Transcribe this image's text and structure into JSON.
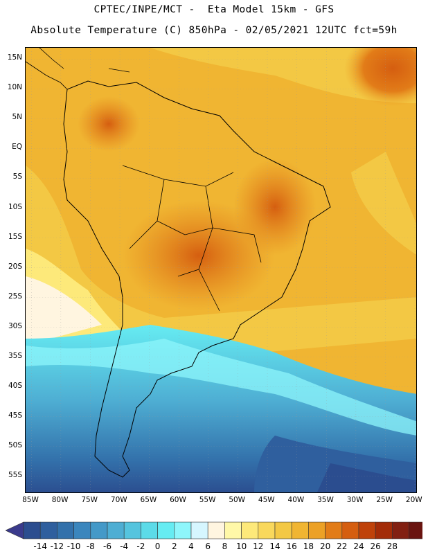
{
  "header": {
    "line1": "CPTEC/INPE/MCT -  Eta Model 15km - GFS",
    "line2": "Absolute Temperature (C) 850hPa - 02/05/2021 12UTC fct=59h"
  },
  "axes": {
    "lat_labels": [
      "15N",
      "10N",
      "5N",
      "EQ",
      "5S",
      "10S",
      "15S",
      "20S",
      "25S",
      "30S",
      "35S",
      "40S",
      "45S",
      "50S",
      "55S"
    ],
    "lon_labels": [
      "85W",
      "80W",
      "75W",
      "70W",
      "65W",
      "60W",
      "55W",
      "50W",
      "45W",
      "40W",
      "35W",
      "30W",
      "25W",
      "20W"
    ]
  },
  "colorbar": {
    "labels": [
      "-14",
      "-12",
      "-10",
      "-8",
      "-6",
      "-4",
      "-2",
      "0",
      "2",
      "4",
      "6",
      "8",
      "10",
      "12",
      "14",
      "16",
      "18",
      "20",
      "22",
      "24",
      "26",
      "28"
    ],
    "colors": [
      "#2b4d8f",
      "#2f5f9e",
      "#3371ab",
      "#3b86bd",
      "#4499c8",
      "#4eaed3",
      "#55c4de",
      "#5cdbe8",
      "#66ecf2",
      "#8ef6fb",
      "#d6f6ff",
      "#fff5e0",
      "#fff8a8",
      "#fde97a",
      "#f9d85c",
      "#f3c844",
      "#f0b532",
      "#eca126",
      "#e27c18",
      "#d55e10",
      "#bf420a",
      "#a32c08",
      "#822012",
      "#6a1410"
    ],
    "end_left_color": "#3a3a8c",
    "end_right_color": "#7a0a2a"
  }
}
